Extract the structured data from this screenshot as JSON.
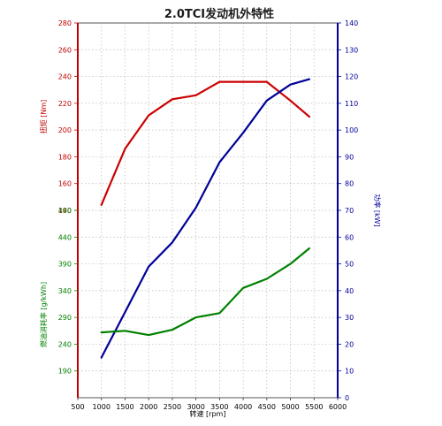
{
  "chart_data": {
    "type": "line",
    "title": "2.0TCI发动机外特性",
    "xlabel": "转速 [rpm]",
    "xlim": [
      500,
      6000
    ],
    "x_ticks": [
      500,
      1000,
      1500,
      2000,
      2500,
      3000,
      3500,
      4000,
      4500,
      5000,
      5500,
      6000
    ],
    "grid": true,
    "left_axis_upper": {
      "label": "扭矩 [Nm]",
      "color": "#c00000",
      "ticks": [
        140,
        160,
        180,
        200,
        220,
        240,
        260,
        280
      ]
    },
    "left_axis_lower": {
      "label": "燃油消耗率 [g/kWh]",
      "color": "#008000",
      "ticks": [
        190,
        240,
        290,
        340,
        390,
        440,
        490
      ]
    },
    "right_axis": {
      "label": "功率 [kW]",
      "color": "#000099",
      "ticks": [
        0,
        10,
        20,
        30,
        40,
        50,
        60,
        70,
        80,
        90,
        100,
        110,
        120,
        130,
        140
      ]
    },
    "series": [
      {
        "axis": "left_upper",
        "color": "#cc0000",
        "x": [
          1000,
          1500,
          2000,
          2500,
          3000,
          3500,
          4000,
          4500,
          5000,
          5400
        ],
        "values": [
          144,
          186,
          211,
          223,
          226,
          236,
          236,
          236,
          222,
          210
        ]
      },
      {
        "axis": "right",
        "color": "#000099",
        "x": [
          1000,
          1500,
          2000,
          2500,
          3000,
          3500,
          4000,
          4500,
          5000,
          5400
        ],
        "values": [
          15,
          32,
          49,
          58,
          71,
          88,
          99,
          111,
          117,
          119
        ]
      },
      {
        "axis": "left_lower",
        "color": "#008000",
        "x": [
          1000,
          1500,
          2000,
          2500,
          3000,
          3500,
          4000,
          4500,
          5000,
          5400
        ],
        "values": [
          262,
          265,
          257,
          267,
          290,
          298,
          345,
          362,
          390,
          419
        ]
      }
    ]
  }
}
